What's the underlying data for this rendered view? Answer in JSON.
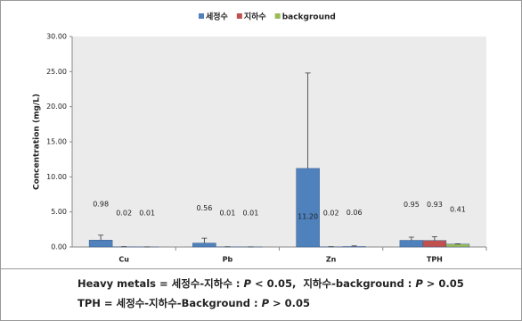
{
  "chart_data": {
    "type": "bar",
    "y_label": "Concentration (mg/L)",
    "categories": [
      "Cu",
      "Pb",
      "Zn",
      "TPH"
    ],
    "series": [
      {
        "name": "세정수",
        "color": "#4f81bd",
        "values": [
          0.98,
          0.56,
          11.2,
          0.95
        ],
        "value_labels": [
          "0.98",
          "0.56",
          "11.20",
          "0.95"
        ],
        "errors": [
          0.7,
          0.7,
          13.6,
          0.45
        ]
      },
      {
        "name": "지하수",
        "color": "#c0504d",
        "values": [
          0.02,
          0.01,
          0.02,
          0.93
        ],
        "value_labels": [
          "0.02",
          "0.01",
          "0.02",
          "0.93"
        ],
        "errors": [
          0.02,
          0.02,
          0.02,
          0.55
        ]
      },
      {
        "name": "background",
        "color": "#9bbb59",
        "values": [
          0.01,
          0.01,
          0.06,
          0.41
        ],
        "value_labels": [
          "0.01",
          "0.01",
          "0.06",
          "0.41"
        ],
        "errors": [
          0.01,
          0.01,
          0.1,
          0.05
        ]
      }
    ],
    "ylim": [
      0,
      30
    ],
    "yticks": [
      {
        "value": 0,
        "label": "0.00"
      },
      {
        "value": 5,
        "label": "5.00"
      },
      {
        "value": 10,
        "label": "10.00"
      },
      {
        "value": 15,
        "label": "15.00"
      },
      {
        "value": 20,
        "label": "20.00"
      },
      {
        "value": 25,
        "label": "25.00"
      },
      {
        "value": 30,
        "label": "30.00"
      }
    ],
    "legend": "top"
  },
  "notes": [
    [
      "Heavy metals = 세정수-지하수 : ",
      "P",
      " < 0.05,  지하수-background : ",
      "P",
      " > 0.05"
    ],
    [
      "TPH = 세정수-지하수-Background : ",
      "P",
      " > 0.05"
    ]
  ]
}
